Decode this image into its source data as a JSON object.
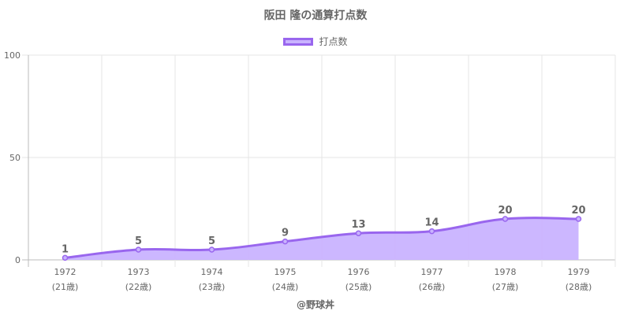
{
  "chart_data": {
    "type": "area",
    "title": "阪田 隆の通算打点数",
    "categories": [
      "1972",
      "1973",
      "1974",
      "1975",
      "1976",
      "1977",
      "1978",
      "1979"
    ],
    "category_sublabels": [
      "(21歳)",
      "(22歳)",
      "(23歳)",
      "(24歳)",
      "(25歳)",
      "(26歳)",
      "(27歳)",
      "(28歳)"
    ],
    "series": [
      {
        "name": "打点数",
        "values": [
          1,
          5,
          5,
          9,
          13,
          14,
          20,
          20
        ]
      }
    ],
    "ylim": [
      0,
      100
    ],
    "yticks": [
      0,
      50,
      100
    ],
    "xlabel": "",
    "ylabel": "",
    "grid": true,
    "legend_position": "top",
    "colors": {
      "line": "#9966ee",
      "fill": "#c9b3ff",
      "grid": "#e5e5e5",
      "axis": "#bbbbbb"
    }
  },
  "footer": {
    "credit": "@野球丼"
  }
}
